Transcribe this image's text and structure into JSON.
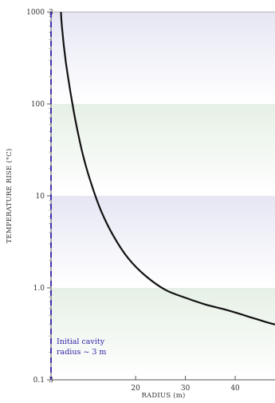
{
  "chart_data": {
    "type": "line",
    "title": "",
    "xlabel": "RADIUS (m)",
    "ylabel": "TEMPERATURE RISE (°C)",
    "xlim": [
      3,
      48
    ],
    "ylim": [
      0.1,
      1000
    ],
    "yscale": "log",
    "x_ticks": [
      "20",
      "30",
      "40"
    ],
    "y_ticks": [
      "0.1",
      "1.0",
      "10",
      "100",
      "1000"
    ],
    "x_extra_tick_labels": [
      "3"
    ],
    "grid": false,
    "bands": [
      {
        "from": 0.1,
        "to": 1.0,
        "color": "#e6f0e6"
      },
      {
        "from": 1.0,
        "to": 10,
        "color": "#e6e6f4"
      },
      {
        "from": 10,
        "to": 100,
        "color": "#e6f0e6"
      },
      {
        "from": 100,
        "to": 1000,
        "color": "#e6e6f4"
      }
    ],
    "series": [
      {
        "color": "#111111",
        "x": [
          5.0,
          5.1,
          5.3,
          5.6,
          6.0,
          6.6,
          7.3,
          8.2,
          9.4,
          11.0,
          13.0,
          15.5,
          18.5,
          22.0,
          26.0,
          30.0,
          34.0,
          38.0,
          41.0,
          43.0,
          45.0,
          46.5,
          48.0
        ],
        "y": [
          1000,
          800,
          600,
          420,
          280,
          170,
          100,
          55,
          28,
          14,
          7.0,
          3.7,
          2.1,
          1.35,
          0.95,
          0.78,
          0.66,
          0.58,
          0.52,
          0.48,
          0.445,
          0.42,
          0.4
        ]
      }
    ],
    "reference_line": {
      "x": 3,
      "color": "#2d1fa6",
      "style": "dashed",
      "label": [
        "Initial cavity",
        "radius ~ 3 m"
      ]
    }
  }
}
